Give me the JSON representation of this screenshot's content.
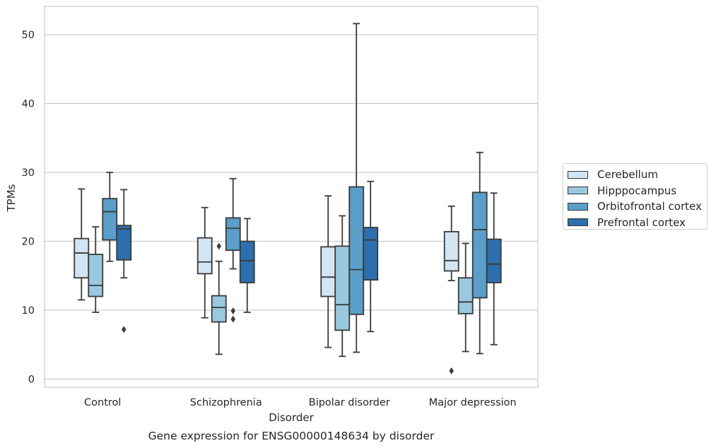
{
  "chart_data": {
    "type": "box",
    "title": "Gene expression for ENSG00000148634 by disorder",
    "xlabel": "Disorder",
    "ylabel": "TPMs",
    "ylim": [
      -1,
      54
    ],
    "yticks": [
      0,
      10,
      20,
      30,
      40,
      50
    ],
    "grid": "horizontal",
    "legend_position": "right",
    "categories": [
      "Control",
      "Schizophrenia",
      "Bipolar disorder",
      "Major depression"
    ],
    "series": [
      {
        "name": "Cerebellum",
        "color": "#d3e4f3",
        "boxes": [
          {
            "whisker_low": 11.5,
            "q1": 14.7,
            "median": 18.3,
            "q3": 20.4,
            "whisker_high": 27.6,
            "outliers": []
          },
          {
            "whisker_low": 8.9,
            "q1": 15.3,
            "median": 17.0,
            "q3": 20.5,
            "whisker_high": 24.9,
            "outliers": []
          },
          {
            "whisker_low": 4.6,
            "q1": 12.0,
            "median": 14.8,
            "q3": 19.2,
            "whisker_high": 26.6,
            "outliers": []
          },
          {
            "whisker_low": 14.3,
            "q1": 15.7,
            "median": 17.2,
            "q3": 21.4,
            "whisker_high": 25.1,
            "outliers": [
              1.2
            ]
          }
        ]
      },
      {
        "name": "Hipppocampus",
        "color": "#9ac8e0",
        "boxes": [
          {
            "whisker_low": 9.7,
            "q1": 12.0,
            "median": 13.6,
            "q3": 18.1,
            "whisker_high": 22.1,
            "outliers": []
          },
          {
            "whisker_low": 3.6,
            "q1": 8.3,
            "median": 10.4,
            "q3": 12.1,
            "whisker_high": 17.1,
            "outliers": [
              19.3
            ]
          },
          {
            "whisker_low": 3.3,
            "q1": 7.1,
            "median": 10.8,
            "q3": 19.3,
            "whisker_high": 23.7,
            "outliers": []
          },
          {
            "whisker_low": 4.0,
            "q1": 9.5,
            "median": 11.2,
            "q3": 14.7,
            "whisker_high": 19.7,
            "outliers": []
          }
        ]
      },
      {
        "name": "Orbitofrontal cortex",
        "color": "#5a9ec9",
        "boxes": [
          {
            "whisker_low": 17.1,
            "q1": 20.2,
            "median": 24.3,
            "q3": 26.2,
            "whisker_high": 30.0,
            "outliers": []
          },
          {
            "whisker_low": 16.0,
            "q1": 18.7,
            "median": 21.9,
            "q3": 23.4,
            "whisker_high": 29.1,
            "outliers": [
              9.9,
              8.7
            ]
          },
          {
            "whisker_low": 3.9,
            "q1": 9.4,
            "median": 15.9,
            "q3": 27.9,
            "whisker_high": 51.6,
            "outliers": []
          },
          {
            "whisker_low": 3.7,
            "q1": 11.8,
            "median": 21.7,
            "q3": 27.1,
            "whisker_high": 32.9,
            "outliers": []
          }
        ]
      },
      {
        "name": "Prefrontal cortex",
        "color": "#2d6fae",
        "boxes": [
          {
            "whisker_low": 14.7,
            "q1": 17.3,
            "median": 21.8,
            "q3": 22.3,
            "whisker_high": 27.5,
            "outliers": [
              7.2
            ]
          },
          {
            "whisker_low": 9.7,
            "q1": 14.0,
            "median": 17.2,
            "q3": 20.0,
            "whisker_high": 23.3,
            "outliers": []
          },
          {
            "whisker_low": 6.9,
            "q1": 14.4,
            "median": 20.2,
            "q3": 22.0,
            "whisker_high": 28.7,
            "outliers": []
          },
          {
            "whisker_low": 5.0,
            "q1": 14.0,
            "median": 16.7,
            "q3": 20.3,
            "whisker_high": 27.0,
            "outliers": []
          }
        ]
      }
    ]
  }
}
